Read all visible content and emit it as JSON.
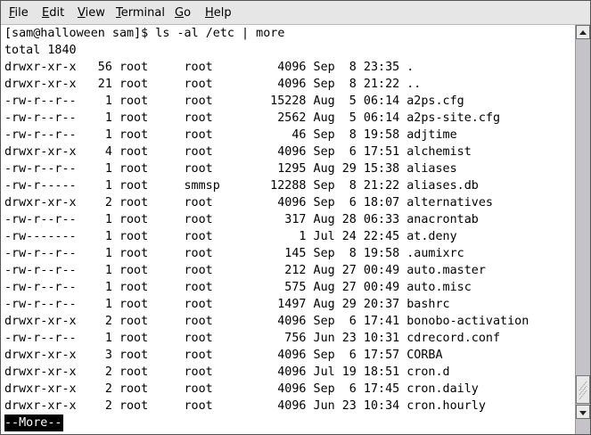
{
  "menubar": {
    "items": [
      {
        "label": "File",
        "mnemonic": "F"
      },
      {
        "label": "Edit",
        "mnemonic": "E"
      },
      {
        "label": "View",
        "mnemonic": "V"
      },
      {
        "label": "Terminal",
        "mnemonic": "T"
      },
      {
        "label": "Go",
        "mnemonic": "G"
      },
      {
        "label": "Help",
        "mnemonic": "H"
      }
    ]
  },
  "terminal": {
    "prompt": "[sam@halloween sam]$ ls -al /etc | more",
    "total": "total 1840",
    "rows": [
      [
        "drwxr-xr-x",
        "56",
        "root",
        "root",
        "4096",
        "Sep",
        "8",
        "23:35",
        "."
      ],
      [
        "drwxr-xr-x",
        "21",
        "root",
        "root",
        "4096",
        "Sep",
        "8",
        "21:22",
        ".."
      ],
      [
        "-rw-r--r--",
        "1",
        "root",
        "root",
        "15228",
        "Aug",
        "5",
        "06:14",
        "a2ps.cfg"
      ],
      [
        "-rw-r--r--",
        "1",
        "root",
        "root",
        "2562",
        "Aug",
        "5",
        "06:14",
        "a2ps-site.cfg"
      ],
      [
        "-rw-r--r--",
        "1",
        "root",
        "root",
        "46",
        "Sep",
        "8",
        "19:58",
        "adjtime"
      ],
      [
        "drwxr-xr-x",
        "4",
        "root",
        "root",
        "4096",
        "Sep",
        "6",
        "17:51",
        "alchemist"
      ],
      [
        "-rw-r--r--",
        "1",
        "root",
        "root",
        "1295",
        "Aug",
        "29",
        "15:38",
        "aliases"
      ],
      [
        "-rw-r-----",
        "1",
        "root",
        "smmsp",
        "12288",
        "Sep",
        "8",
        "21:22",
        "aliases.db"
      ],
      [
        "drwxr-xr-x",
        "2",
        "root",
        "root",
        "4096",
        "Sep",
        "6",
        "18:07",
        "alternatives"
      ],
      [
        "-rw-r--r--",
        "1",
        "root",
        "root",
        "317",
        "Aug",
        "28",
        "06:33",
        "anacrontab"
      ],
      [
        "-rw-------",
        "1",
        "root",
        "root",
        "1",
        "Jul",
        "24",
        "22:45",
        "at.deny"
      ],
      [
        "-rw-r--r--",
        "1",
        "root",
        "root",
        "145",
        "Sep",
        "8",
        "19:58",
        ".aumixrc"
      ],
      [
        "-rw-r--r--",
        "1",
        "root",
        "root",
        "212",
        "Aug",
        "27",
        "00:49",
        "auto.master"
      ],
      [
        "-rw-r--r--",
        "1",
        "root",
        "root",
        "575",
        "Aug",
        "27",
        "00:49",
        "auto.misc"
      ],
      [
        "-rw-r--r--",
        "1",
        "root",
        "root",
        "1497",
        "Aug",
        "29",
        "20:37",
        "bashrc"
      ],
      [
        "drwxr-xr-x",
        "2",
        "root",
        "root",
        "4096",
        "Sep",
        "6",
        "17:41",
        "bonobo-activation"
      ],
      [
        "-rw-r--r--",
        "1",
        "root",
        "root",
        "756",
        "Jun",
        "23",
        "10:31",
        "cdrecord.conf"
      ],
      [
        "drwxr-xr-x",
        "3",
        "root",
        "root",
        "4096",
        "Sep",
        "6",
        "17:57",
        "CORBA"
      ],
      [
        "drwxr-xr-x",
        "2",
        "root",
        "root",
        "4096",
        "Jul",
        "19",
        "18:51",
        "cron.d"
      ],
      [
        "drwxr-xr-x",
        "2",
        "root",
        "root",
        "4096",
        "Sep",
        "6",
        "17:45",
        "cron.daily"
      ],
      [
        "drwxr-xr-x",
        "2",
        "root",
        "root",
        "4096",
        "Jun",
        "23",
        "10:34",
        "cron.hourly"
      ]
    ],
    "pager": "--More--"
  },
  "scrollbar": {
    "position_percent": 100
  }
}
